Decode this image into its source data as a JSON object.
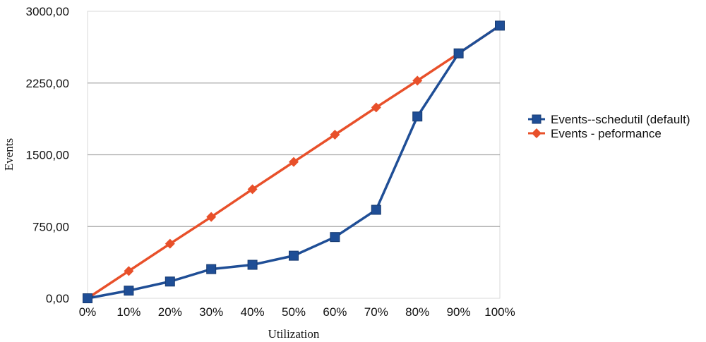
{
  "chart_data": {
    "type": "line",
    "title": "",
    "xlabel": "Utilization",
    "ylabel": "Events",
    "categories": [
      "0%",
      "10%",
      "20%",
      "30%",
      "40%",
      "50%",
      "60%",
      "70%",
      "80%",
      "90%",
      "100%"
    ],
    "yticks": [
      "0,00",
      "750,00",
      "1500,00",
      "2250,00",
      "3000,00"
    ],
    "ylim": [
      0,
      3000
    ],
    "grid": true,
    "legend_position": "right",
    "series": [
      {
        "name": "Events--schedutil (default)",
        "color": "#1f4e96",
        "marker": "square",
        "values": [
          0,
          80,
          175,
          305,
          350,
          445,
          640,
          925,
          1900,
          2560,
          2850
        ]
      },
      {
        "name": "Events - peformance",
        "color": "#e8502a",
        "marker": "diamond",
        "values": [
          0,
          285,
          570,
          850,
          1140,
          1425,
          1710,
          1995,
          2275,
          2560,
          2850
        ]
      }
    ]
  }
}
